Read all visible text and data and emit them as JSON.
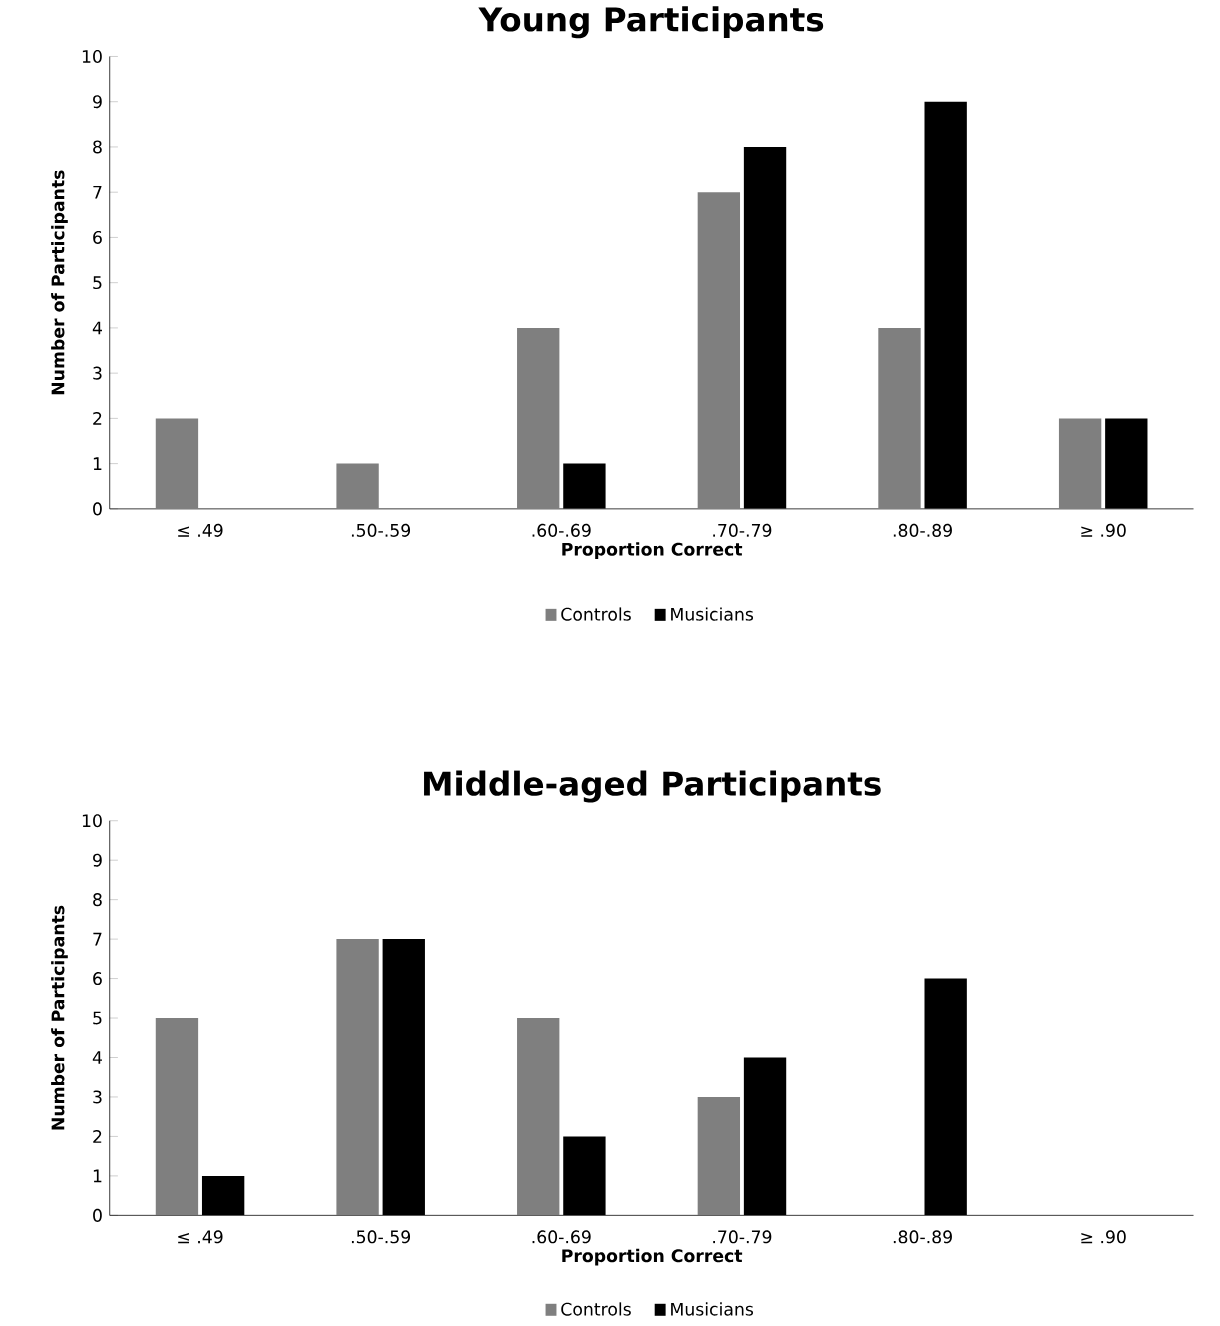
{
  "chart_data": [
    {
      "type": "bar",
      "title": "Young Participants",
      "xlabel": "Proportion Correct",
      "ylabel": "Number of Participants",
      "categories": [
        "≤ .49",
        ".50-.59",
        ".60-.69",
        ".70-.79",
        ".80-.89",
        "≥ .90"
      ],
      "series": [
        {
          "name": "Controls",
          "color": "#7f7f7f",
          "values": [
            2,
            1,
            4,
            7,
            4,
            2
          ]
        },
        {
          "name": "Musicians",
          "color": "#000000",
          "values": [
            0,
            0,
            1,
            8,
            9,
            2
          ]
        }
      ],
      "ylim": [
        0,
        10
      ],
      "yticks": [
        0,
        1,
        2,
        3,
        4,
        5,
        6,
        7,
        8,
        9,
        10
      ],
      "legend": "bottom"
    },
    {
      "type": "bar",
      "title": "Middle-aged Participants",
      "xlabel": "Proportion Correct",
      "ylabel": "Number of Participants",
      "categories": [
        "≤ .49",
        ".50-.59",
        ".60-.69",
        ".70-.79",
        ".80-.89",
        "≥ .90"
      ],
      "series": [
        {
          "name": "Controls",
          "color": "#7f7f7f",
          "values": [
            5,
            7,
            5,
            3,
            0,
            0
          ]
        },
        {
          "name": "Musicians",
          "color": "#000000",
          "values": [
            1,
            7,
            2,
            4,
            6,
            0
          ]
        }
      ],
      "ylim": [
        0,
        10
      ],
      "yticks": [
        0,
        1,
        2,
        3,
        4,
        5,
        6,
        7,
        8,
        9,
        10
      ],
      "legend": "bottom"
    }
  ]
}
